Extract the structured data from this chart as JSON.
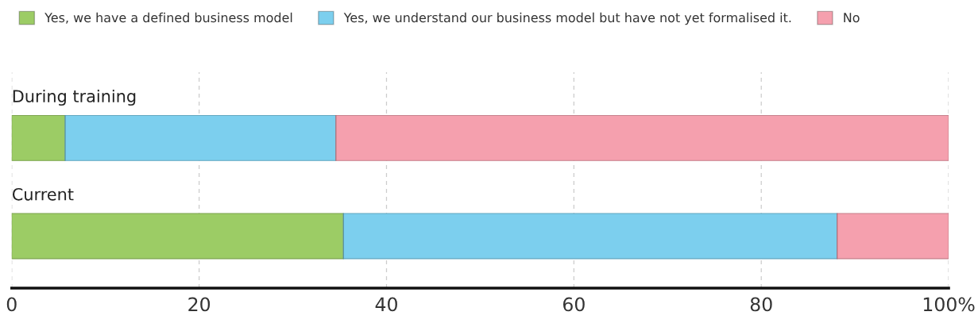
{
  "chart_data": {
    "type": "bar",
    "orientation": "horizontal",
    "stacked": true,
    "categories": [
      "During training",
      "Current"
    ],
    "series": [
      {
        "name": "Yes, we have a defined business model",
        "color": "#9ccc65",
        "values": [
          5.7,
          35.4
        ]
      },
      {
        "name": "Yes, we understand our business model but have not yet formalised it.",
        "color": "#7ccfee",
        "values": [
          28.9,
          52.7
        ]
      },
      {
        "name": "No",
        "color": "#f5a0ae",
        "values": [
          65.4,
          11.9
        ]
      }
    ],
    "xlim": [
      0,
      100
    ],
    "xticks": [
      0,
      20,
      40,
      60,
      80,
      {
        "value": 100,
        "label": "100%"
      }
    ],
    "grid": "x",
    "legend": "top left"
  }
}
